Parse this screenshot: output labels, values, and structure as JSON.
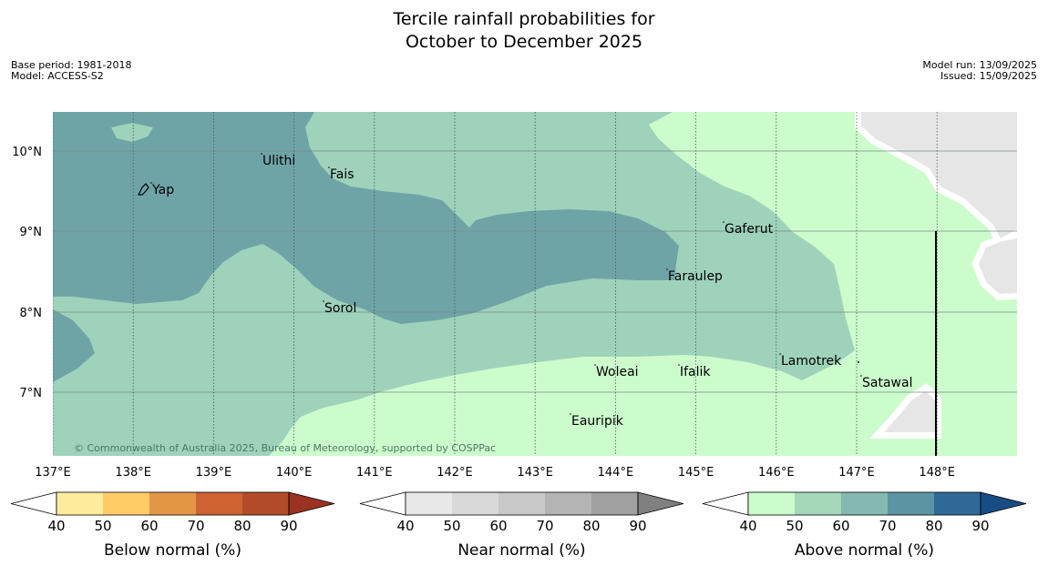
{
  "title_line1": "Tercile rainfall probabilities for",
  "title_line2": "October to December 2025",
  "meta_left": [
    "Base period: 1981-2018",
    "Model: ACCESS-S2"
  ],
  "meta_right": [
    "Model run: 13/09/2025",
    "Issued: 15/09/2025"
  ],
  "lat_labels": [
    "10°N",
    "9°N",
    "8°N",
    "7°N"
  ],
  "lon_labels": [
    "137°E",
    "138°E",
    "139°E",
    "140°E",
    "141°E",
    "142°E",
    "143°E",
    "144°E",
    "145°E",
    "146°E",
    "147°E",
    "148°E"
  ],
  "places": [
    "Ulithi",
    "Fais",
    "Yap",
    "Gaferut",
    "Faraulep",
    "Sorol",
    "Lamotrek",
    "Woleai",
    "Ifalik",
    "Satawal",
    "Eauripik"
  ],
  "copyright": "© Commonwealth of Australia 2025, Bureau of Meteorology, supported by COSPPac",
  "colorbars": [
    {
      "label": "Below normal (%)",
      "ticks": [
        "40",
        "50",
        "60",
        "70",
        "80",
        "90"
      ],
      "colors": [
        "#ffffff",
        "#ffeb9c",
        "#ffcc66",
        "#e29646",
        "#cf6233",
        "#b24b27",
        "#9b3222"
      ]
    },
    {
      "label": "Near normal (%)",
      "ticks": [
        "40",
        "50",
        "60",
        "70",
        "80",
        "90"
      ],
      "colors": [
        "#ffffff",
        "#e8e8e8",
        "#d9d9d9",
        "#c8c8c8",
        "#b4b4b4",
        "#a0a0a0",
        "#808080"
      ]
    },
    {
      "label": "Above normal (%)",
      "ticks": [
        "40",
        "50",
        "60",
        "70",
        "80",
        "90"
      ],
      "colors": [
        "#ffffff",
        "#ccfccc",
        "#a4d8b8",
        "#84b8b0",
        "#5c94a4",
        "#306898",
        "#184c84"
      ]
    }
  ],
  "map_colors": {
    "above_40_50": "#ccfccc",
    "above_50_60": "#9ed2ba",
    "above_60_70": "#6fa4a7",
    "no_data": "#e6e6e6"
  }
}
